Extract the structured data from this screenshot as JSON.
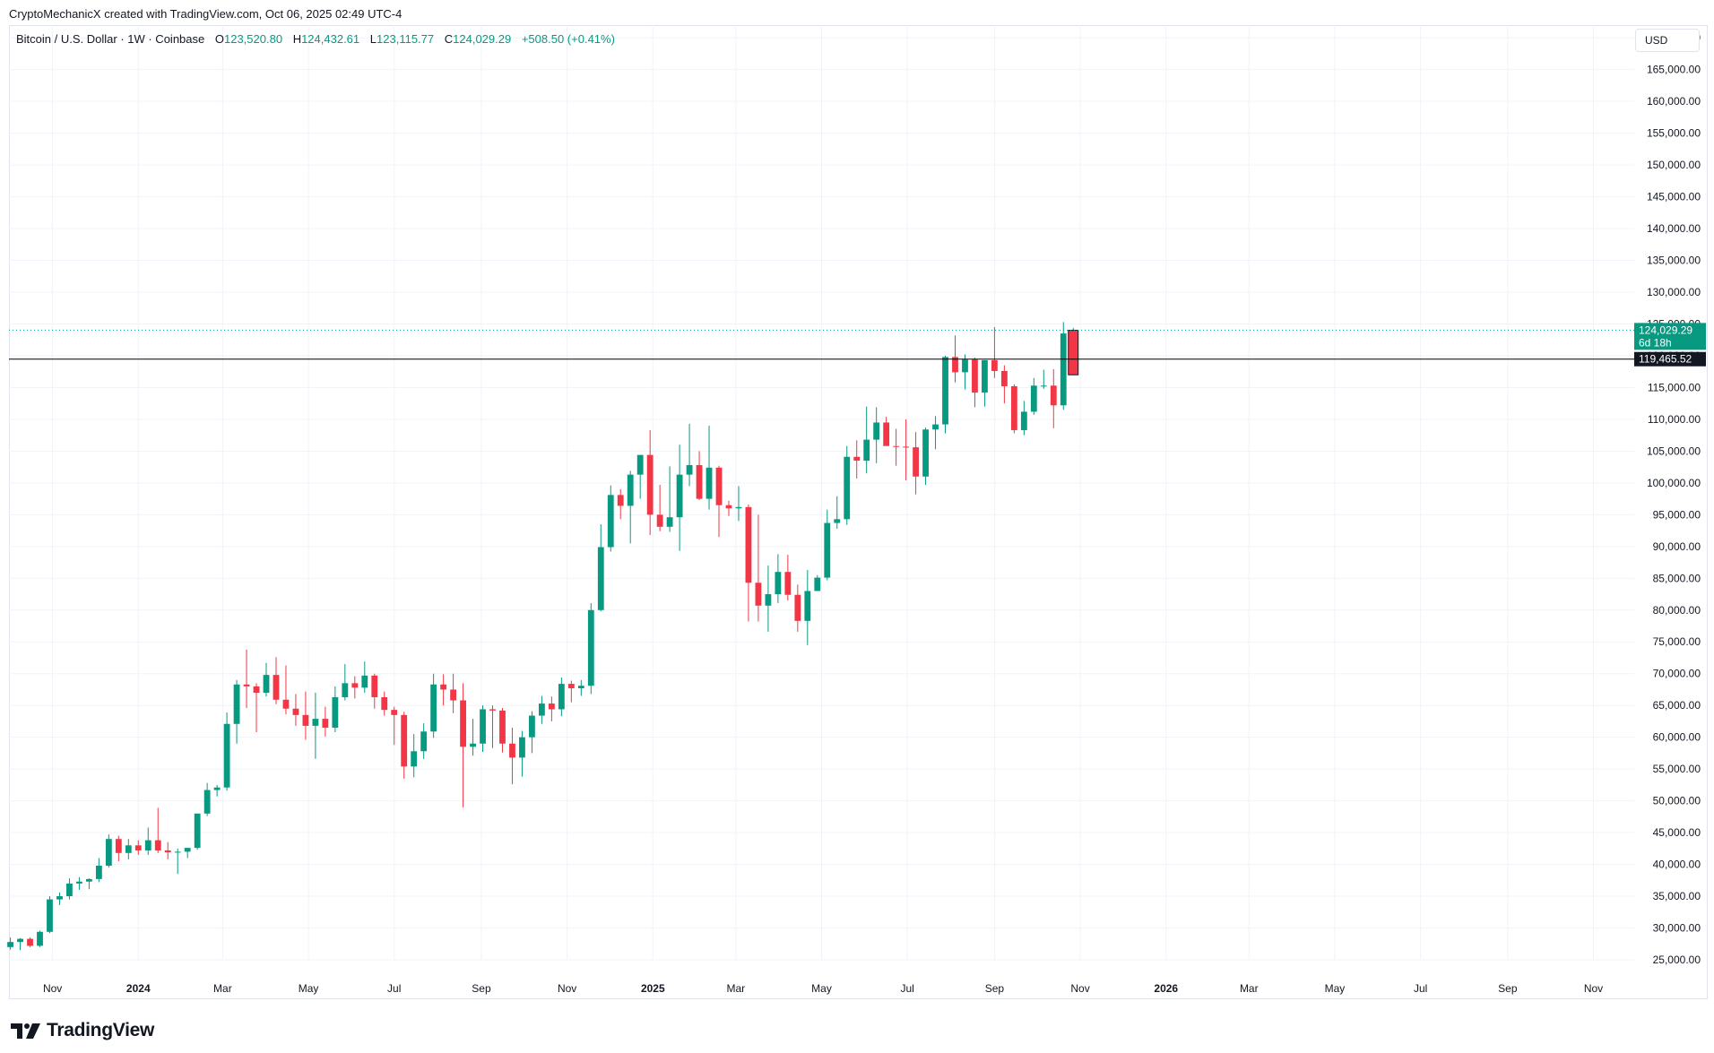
{
  "credit": "CryptoMechanicX created with TradingView.com, Oct 06, 2025 02:49 UTC-4",
  "legend": {
    "symbol": "Bitcoin / U.S. Dollar · 1W · Coinbase",
    "open_label": "O",
    "open": "123,520.80",
    "high_label": "H",
    "high": "124,432.61",
    "low_label": "L",
    "low": "123,115.77",
    "close_label": "C",
    "close": "124,029.29",
    "change": "+508.50 (+0.41%)"
  },
  "currency_button": "USD",
  "footer": {
    "brand": "TradingView",
    "logo_icon": "tradingview-logo-icon"
  },
  "colors": {
    "up": "#089981",
    "down": "#f23645",
    "grid": "#f0f3fa",
    "axis_text": "#131722",
    "price_line": "#089981",
    "level_line": "#000000"
  },
  "chart_data": {
    "type": "candlestick",
    "interval": "1W",
    "ylim": [
      25000,
      172000
    ],
    "xlim": [
      "2023-10-01",
      "2026-11-30"
    ],
    "y_ticks": [
      25000,
      30000,
      35000,
      40000,
      45000,
      50000,
      55000,
      60000,
      65000,
      70000,
      75000,
      80000,
      85000,
      90000,
      95000,
      100000,
      105000,
      110000,
      115000,
      120000,
      125000,
      130000,
      135000,
      140000,
      145000,
      150000,
      155000,
      160000,
      165000,
      170000
    ],
    "y_tick_labels": [
      "25,000.00",
      "30,000.00",
      "35,000.00",
      "40,000.00",
      "45,000.00",
      "50,000.00",
      "55,000.00",
      "60,000.00",
      "65,000.00",
      "70,000.00",
      "75,000.00",
      "80,000.00",
      "85,000.00",
      "90,000.00",
      "95,000.00",
      "100,000.00",
      "105,000.00",
      "110,000.00",
      "115,000.00",
      "120,000.00",
      "125,000.00",
      "130,000.00",
      "135,000.00",
      "140,000.00",
      "145,000.00",
      "150,000.00",
      "155,000.00",
      "160,000.00",
      "165,000.00",
      "170,000.00"
    ],
    "x_ticks": [
      {
        "label": "Nov",
        "date": "2023-11-01",
        "bold": false
      },
      {
        "label": "2024",
        "date": "2024-01-01",
        "bold": true
      },
      {
        "label": "Mar",
        "date": "2024-03-01",
        "bold": false
      },
      {
        "label": "May",
        "date": "2024-05-01",
        "bold": false
      },
      {
        "label": "Jul",
        "date": "2024-07-01",
        "bold": false
      },
      {
        "label": "Sep",
        "date": "2024-09-01",
        "bold": false
      },
      {
        "label": "Nov",
        "date": "2024-11-01",
        "bold": false
      },
      {
        "label": "2025",
        "date": "2025-01-01",
        "bold": true
      },
      {
        "label": "Mar",
        "date": "2025-03-01",
        "bold": false
      },
      {
        "label": "May",
        "date": "2025-05-01",
        "bold": false
      },
      {
        "label": "Jul",
        "date": "2025-07-01",
        "bold": false
      },
      {
        "label": "Sep",
        "date": "2025-09-01",
        "bold": false
      },
      {
        "label": "Nov",
        "date": "2025-11-01",
        "bold": false
      },
      {
        "label": "2026",
        "date": "2026-01-01",
        "bold": true
      },
      {
        "label": "Mar",
        "date": "2026-03-01",
        "bold": false
      },
      {
        "label": "May",
        "date": "2026-05-01",
        "bold": false
      },
      {
        "label": "Jul",
        "date": "2026-07-01",
        "bold": false
      },
      {
        "label": "Sep",
        "date": "2026-09-01",
        "bold": false
      },
      {
        "label": "Nov",
        "date": "2026-11-01",
        "bold": false
      }
    ],
    "first_week": "2023-10-02",
    "ohlc": [
      [
        27000,
        28500,
        26600,
        27800
      ],
      [
        27800,
        28400,
        26500,
        28300
      ],
      [
        28300,
        28500,
        27000,
        27200
      ],
      [
        27200,
        29600,
        27000,
        29400
      ],
      [
        29400,
        35000,
        29200,
        34500
      ],
      [
        34500,
        35600,
        33600,
        35000
      ],
      [
        35000,
        37800,
        34500,
        37000
      ],
      [
        37000,
        38000,
        36000,
        37300
      ],
      [
        37300,
        37800,
        36100,
        37700
      ],
      [
        37700,
        41000,
        37200,
        39800
      ],
      [
        39800,
        44700,
        39500,
        44000
      ],
      [
        44000,
        44500,
        40500,
        41800
      ],
      [
        41800,
        44000,
        40800,
        43000
      ],
      [
        43000,
        43800,
        41500,
        42200
      ],
      [
        42200,
        45800,
        41500,
        43800
      ],
      [
        43800,
        48900,
        41800,
        42200
      ],
      [
        42200,
        43500,
        40800,
        41900
      ],
      [
        41900,
        42500,
        38500,
        42000
      ],
      [
        42000,
        42600,
        41000,
        42600
      ],
      [
        42600,
        48000,
        42300,
        48000
      ],
      [
        48000,
        52800,
        47600,
        51700
      ],
      [
        51700,
        52500,
        50700,
        52100
      ],
      [
        52100,
        63900,
        51600,
        62100
      ],
      [
        62100,
        69000,
        59000,
        68300
      ],
      [
        68300,
        73800,
        64600,
        68000
      ],
      [
        68000,
        68500,
        60800,
        67000
      ],
      [
        67000,
        71700,
        66400,
        69800
      ],
      [
        69800,
        72600,
        65200,
        65900
      ],
      [
        65900,
        71300,
        63600,
        64500
      ],
      [
        64500,
        66800,
        61800,
        63500
      ],
      [
        63500,
        67200,
        59600,
        61800
      ],
      [
        61800,
        67000,
        56600,
        62900
      ],
      [
        62900,
        64800,
        60100,
        61500
      ],
      [
        61500,
        68000,
        60800,
        66300
      ],
      [
        66300,
        71500,
        65800,
        68500
      ],
      [
        68500,
        69600,
        66100,
        67800
      ],
      [
        67800,
        71900,
        67000,
        69700
      ],
      [
        69700,
        70000,
        64500,
        66300
      ],
      [
        66300,
        67200,
        63400,
        64300
      ],
      [
        64300,
        64800,
        58800,
        63500
      ],
      [
        63500,
        64000,
        53500,
        55400
      ],
      [
        55400,
        60500,
        53700,
        57800
      ],
      [
        57800,
        62200,
        56600,
        60900
      ],
      [
        60900,
        70000,
        59900,
        68300
      ],
      [
        68300,
        69900,
        65000,
        67500
      ],
      [
        67500,
        70000,
        63800,
        65800
      ],
      [
        65800,
        68500,
        49000,
        58500
      ],
      [
        58500,
        62900,
        57100,
        59000
      ],
      [
        59000,
        65000,
        57700,
        64400
      ],
      [
        64400,
        65000,
        58300,
        64200
      ],
      [
        64200,
        64600,
        57600,
        59000
      ],
      [
        59000,
        61500,
        52600,
        56800
      ],
      [
        56800,
        61000,
        53800,
        60000
      ],
      [
        60000,
        64100,
        57500,
        63400
      ],
      [
        63400,
        66500,
        62100,
        65300
      ],
      [
        65300,
        66400,
        62500,
        64400
      ],
      [
        64400,
        69400,
        63300,
        68400
      ],
      [
        68400,
        68900,
        65500,
        67700
      ],
      [
        67700,
        69000,
        66500,
        68100
      ],
      [
        68100,
        81100,
        66800,
        80000
      ],
      [
        80000,
        93500,
        79800,
        89900
      ],
      [
        89900,
        99600,
        89200,
        98100
      ],
      [
        98100,
        99000,
        94300,
        96400
      ],
      [
        96400,
        101900,
        90500,
        101300
      ],
      [
        101300,
        104000,
        97500,
        104400
      ],
      [
        104400,
        108300,
        91800,
        95000
      ],
      [
        95000,
        99700,
        92400,
        93100
      ],
      [
        93100,
        102600,
        92300,
        94600
      ],
      [
        94600,
        106000,
        89300,
        101300
      ],
      [
        101300,
        109300,
        99500,
        102800
      ],
      [
        102800,
        105000,
        97300,
        97500
      ],
      [
        97500,
        109000,
        95800,
        102400
      ],
      [
        102400,
        102700,
        91500,
        96500
      ],
      [
        96500,
        97200,
        94800,
        96000
      ],
      [
        96000,
        99500,
        94000,
        96200
      ],
      [
        96200,
        96600,
        78200,
        84300
      ],
      [
        84300,
        95000,
        78200,
        80700
      ],
      [
        80700,
        87000,
        76600,
        82500
      ],
      [
        82500,
        88800,
        81100,
        86000
      ],
      [
        86000,
        88700,
        81500,
        82400
      ],
      [
        82400,
        84000,
        76600,
        78300
      ],
      [
        78300,
        86300,
        74500,
        83000
      ],
      [
        83000,
        85500,
        83000,
        85100
      ],
      [
        85100,
        95800,
        84700,
        93700
      ],
      [
        93700,
        97900,
        92800,
        94300
      ],
      [
        94300,
        105800,
        93400,
        104100
      ],
      [
        104100,
        106700,
        100700,
        103500
      ],
      [
        103500,
        112000,
        101500,
        106800
      ],
      [
        106800,
        111900,
        103100,
        109500
      ],
      [
        109500,
        110400,
        105900,
        105800
      ],
      [
        105800,
        108500,
        102700,
        105700
      ],
      [
        105700,
        110000,
        100400,
        105600
      ],
      [
        105600,
        108000,
        98200,
        101000
      ],
      [
        101000,
        108700,
        99700,
        108400
      ],
      [
        108400,
        110500,
        105300,
        109200
      ],
      [
        109200,
        120000,
        107800,
        119800
      ],
      [
        119800,
        123200,
        115800,
        117400
      ],
      [
        117400,
        120200,
        114700,
        119400
      ],
      [
        119400,
        119700,
        111900,
        114200
      ],
      [
        114200,
        119300,
        112000,
        119300
      ],
      [
        119300,
        124500,
        116500,
        117600
      ],
      [
        117600,
        118500,
        112500,
        115200
      ],
      [
        115200,
        115500,
        107800,
        108300
      ],
      [
        108300,
        112900,
        107500,
        111200
      ],
      [
        111200,
        116500,
        110700,
        115300
      ],
      [
        115300,
        117800,
        114800,
        115300
      ],
      [
        115300,
        117900,
        108600,
        112200
      ],
      [
        112200,
        125300,
        111500,
        123500
      ],
      [
        123500,
        124400,
        123100,
        124000
      ]
    ],
    "last_price": 124029.29,
    "last_price_label": "124,029.29",
    "countdown_label": "6d 18h",
    "level_line": {
      "price": 119465.52,
      "label": "119,465.52"
    },
    "drawn_box": {
      "from_week": 107.5,
      "to_week": 108.5,
      "low": 117000,
      "high": 124000,
      "color": "#f23645"
    }
  }
}
